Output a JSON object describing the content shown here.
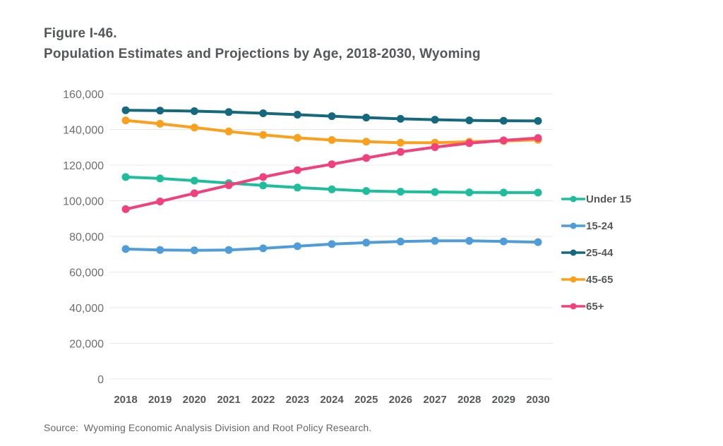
{
  "figure": {
    "label": "Figure I-46.",
    "title": "Population Estimates and Projections by Age, 2018-2030, Wyoming"
  },
  "source": "Source:  Wyoming Economic Analysis Division and Root Policy Research.",
  "colors": {
    "title_text": "#54565a",
    "y_tick_text": "#6e6f71",
    "x_tick_text": "#57585a",
    "gridline": "#e8e8e8"
  },
  "chart_data": {
    "type": "line",
    "title": "Population Estimates and Projections by Age, 2018-2030, Wyoming",
    "xlabel": "",
    "ylabel": "",
    "x": [
      2018,
      2019,
      2020,
      2021,
      2022,
      2023,
      2024,
      2025,
      2026,
      2027,
      2028,
      2029,
      2030
    ],
    "ylim": [
      0,
      160000
    ],
    "ytick_interval": 20000,
    "ytick_labels": [
      "0",
      "20,000",
      "40,000",
      "60,000",
      "80,000",
      "100,000",
      "120,000",
      "140,000",
      "160,000"
    ],
    "grid": "horizontal-only",
    "legend_position": "right-middle",
    "marker": "circle",
    "series": [
      {
        "name": "Under 15",
        "color": "#1ebd9c",
        "values": [
          113300,
          112500,
          111300,
          109900,
          108600,
          107400,
          106400,
          105500,
          105100,
          104900,
          104700,
          104600,
          104600
        ]
      },
      {
        "name": "15-24",
        "color": "#4f9dd8",
        "values": [
          72900,
          72400,
          72200,
          72400,
          73300,
          74500,
          75700,
          76500,
          77100,
          77500,
          77500,
          77200,
          76800
        ]
      },
      {
        "name": "25-44",
        "color": "#14697e",
        "values": [
          150800,
          150600,
          150300,
          149800,
          149100,
          148300,
          147500,
          146700,
          146000,
          145500,
          145100,
          144900,
          144800
        ]
      },
      {
        "name": "45-65",
        "color": "#faa01c",
        "values": [
          145100,
          143200,
          141100,
          138900,
          137000,
          135300,
          134100,
          133200,
          132600,
          132600,
          133100,
          133600,
          134200
        ]
      },
      {
        "name": "65+",
        "color": "#f0417d",
        "values": [
          95300,
          99600,
          104200,
          108700,
          113300,
          117200,
          120500,
          124000,
          127400,
          130100,
          132300,
          133900,
          135200
        ]
      }
    ]
  }
}
